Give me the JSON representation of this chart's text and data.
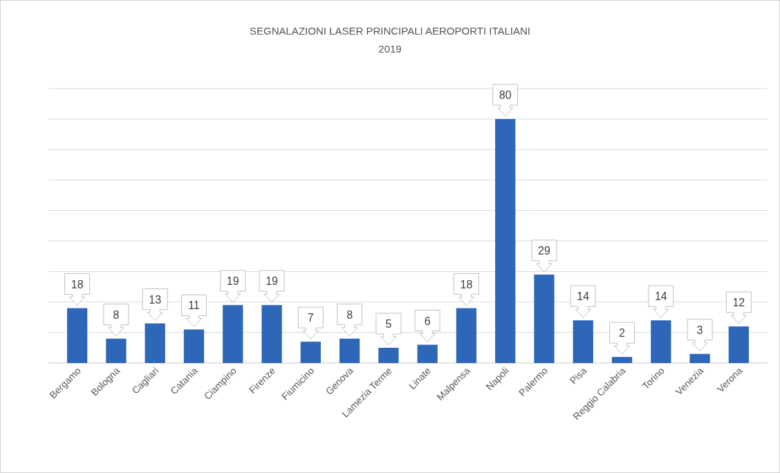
{
  "chart_data": {
    "type": "bar",
    "title": "SEGNALAZIONI LASER PRINCIPALI AEROPORTI ITALIANI",
    "subtitle": "2019",
    "categories": [
      "Bergamo",
      "Bologna",
      "Cagliari",
      "Catania",
      "Ciampino",
      "Firenze",
      "Fiumicino",
      "Genova",
      "Lamezia Terme",
      "Linate",
      "Malpensa",
      "Napoli",
      "Palermo",
      "Pisa",
      "Reggio Calabria",
      "Torino",
      "Venezia",
      "Verona"
    ],
    "values": [
      18,
      8,
      13,
      11,
      19,
      19,
      7,
      8,
      5,
      6,
      18,
      80,
      29,
      14,
      2,
      14,
      3,
      12
    ],
    "color": "#2e66b8",
    "data_labels": true,
    "grid": "y",
    "tick_labels": "x",
    "ylim": [
      0,
      90
    ],
    "yticks": [
      {
        "value": 0,
        "label": null
      },
      {
        "value": 10,
        "label": null
      },
      {
        "value": 20,
        "label": null
      },
      {
        "value": 30,
        "label": null
      },
      {
        "value": 40,
        "label": null
      },
      {
        "value": 50,
        "label": null
      },
      {
        "value": 60,
        "label": null
      },
      {
        "value": 70,
        "label": null
      },
      {
        "value": 80,
        "label": null
      },
      {
        "value": 90,
        "label": null
      }
    ]
  }
}
